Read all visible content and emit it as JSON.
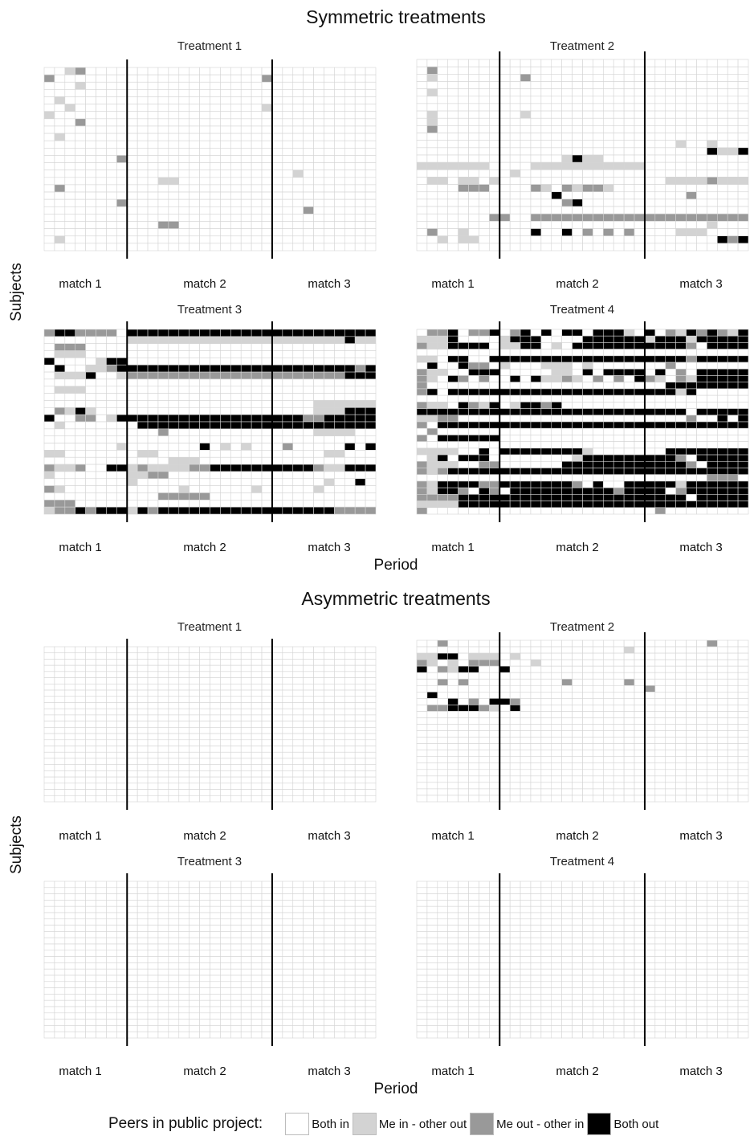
{
  "chart_data": {
    "type": "heatmap",
    "colors": {
      "both_in": "#ffffff",
      "me_in_other_out": "#d3d3d3",
      "me_out_other_in": "#999999",
      "both_out": "#000000",
      "grid": "#d4d4d4"
    },
    "legend": {
      "title": "Peers in public project:",
      "entries": [
        {
          "label": "Both in",
          "color": "#ffffff"
        },
        {
          "label": "Me in - other out",
          "color": "#d3d3d3"
        },
        {
          "label": "Me out - other in",
          "color": "#999999"
        },
        {
          "label": "Both out",
          "color": "#000000"
        }
      ],
      "placement": "bottom"
    },
    "xlabel": "Period",
    "ylabel": "Subjects",
    "match_labels": [
      "match 1",
      "match 2",
      "match 3"
    ],
    "state_codes": {
      "0": "Both in",
      "1": "Me in - other out",
      "2": "Me out - other in",
      "3": "Both out"
    },
    "periods_per_match": [
      8,
      14,
      10
    ],
    "sections": [
      {
        "title": "Symmetric treatments",
        "panels": [
          {
            "title": "Treatment 1",
            "rows": [
              "00120000000000000000000000000000",
              "20000000000000000000020000000000",
              "00010000000000000000000000000000",
              "00000000000000000000000000000000",
              "01000000000000000000000000000000",
              "00100000000000000000010000000000",
              "10000000000000000000000000000000",
              "00020000000000000000000000000000",
              "00000000000000000000000000000000",
              "01000000000000000000000000000000",
              "00000000000000000000000000000000",
              "00000000000000000000000000000000",
              "00000002000000000000000000000000",
              "00000000000000000000000000000000",
              "00000000000000000000000010000000",
              "00000000000110000000000000000000",
              "02000000000000000000000000000000",
              "00000000000000000000000000000000",
              "00000002000000000000000000000000",
              "00000000000000000000000002000000",
              "00000000000000000000000000000000",
              "00000000000220000000000000000000",
              "00000000000000000000000000000000",
              "01000000000000000000000000000000",
              "00000000000000000000000000000000"
            ]
          },
          {
            "title": "Treatment 2",
            "rows": [
              "00000000000000000000000000000000",
              "02000000000000000000000000000000",
              "01000000002000000000000000000000",
              "00000000000000000000000000000000",
              "01000000000000000000000000000000",
              "00000000000000000000000000000000",
              "00000000000000000000000000000000",
              "01000000001000000000000000000000",
              "01000000000000000000000000000000",
              "02000000000000000000000000000000",
              "00000000000000000000000000000000",
              "00000000000000000000000001001000",
              "00000000000000000000000000003113",
              "00000000000000131100000000000000",
              "11111110000111111111110000000000",
              "00000000010000000000000000000000",
              "01101101000000000000000011112111",
              "00002220000210212210000000000000",
              "00000000000003000000000000200000",
              "00000000000000230000000000000000",
              "00000000000000000000000000000000",
              "00000002200222222222222222222222",
              "00000000000000000000000000001000",
              "02001000000300302020200001110000",
              "00101100000000000000000000000323",
              "00000000000000000000000000000000"
            ]
          },
          {
            "title": "Treatment 3",
            "rows": [
              "23322220333333333333333333333333",
              "00000000111111111111111111111311",
              "02220000000000000000000000000000",
              "01110000000000000000000000000000",
              "30000133000000000000000000000000",
              "03001123333333333333333333333323",
              "01113001222222222222222222222333",
              "00000000000000000000000000000000",
              "01110000000000000000000000000000",
              "00000000000000000000000000000000",
              "00000000000000000000000000111111",
              "02131000000000000000000000111333",
              "30022013333333333333333332233333",
              "01000000033333333333333333333333",
              "00000000000200000000000000111100",
              "00000000000000000000000000000000",
              "00000001000000030101000200000303",
              "11000000011000000000000000011000",
              "00000000000011100000000000000000",
              "21120033121111223333333333211333",
              "10000000112200000000000000000000",
              "00000000100000000000000000010030",
              "21000000000001000000100000100000",
              "00000000000222220000000000000000",
              "22200000000000000000000000000000",
              "12232333132333333333333333332222"
            ]
          },
          {
            "title": "Treatment 4",
            "rows": [
              "02230223023030330333103021323213",
              "11130000133300003333331333133333",
              "21133330113301033333333333203333",
              "00000000000000000000000000000000",
              "11033003333333333333333333233333",
              "03003220100011101000000020000000",
              "21100333000001103033330302033333",
              "21032020030311210202032102133333",
              "20000000000000000000000033333333",
              "23033333333333333333333331300000",
              "00000000000000000000000000000000",
              "21103213013323000000000000000000",
              "33333333333333333333333333033333",
              "11220000000000000000000000200303",
              "20333333333333333333333333333333",
              "02000000000000000000000000000000",
              "20333333000000000000000000000000",
              "00000000000000000000000000000000",
              "11110030333333331000000033333333",
              "01303330000000013333333332033333",
              "21110022000000333333333333203333",
              "21233333333333333333333333333333",
              "00000000000000000000000000002220",
              "21333322333333320300333331333333",
              "21332032033333333332333302333333",
              "22223333333333333333333333033333",
              "11113333333333333333333333333333",
              "20000000000000000000000200000000"
            ]
          }
        ]
      },
      {
        "title": "Asymmetric treatments",
        "panels": [
          {
            "title": "Treatment 1",
            "rows": [
              "00000000000000000000000000000000",
              "00000000000000000000000000000000",
              "00000000000000000000000000000000",
              "00000000000000000000000000000000",
              "00000000000000000000000000000000",
              "00000000000000000000000000000000",
              "00000000000000000000000000000000",
              "00000000000000000000000000000000",
              "00000000000000000000000000000000",
              "00000000000000000000000000000000",
              "00000000000000000000000000000000",
              "00000000000000000000000000000000",
              "00000000000000000000000000000000",
              "00000000000000000000000000000000",
              "00000000000000000000000000000000",
              "00000000000000000000000000000000",
              "00000000000000000000000000000000",
              "00000000000000000000000000000000",
              "00000000000000000000000000000000",
              "00000000000000000000000000000000",
              "00000000000000000000000000000000",
              "00000000000000000000000000000000",
              "00000000000000000000000000000000",
              "00000000000000000000000000000000",
              "00000000000000000000000000000000"
            ]
          },
          {
            "title": "Treatment 2",
            "rows": [
              "00200000000000000000000000002000",
              "00000000000000000000100000000000",
              "11330111010000000000000000000000",
              "21010222000100000000000000000000",
              "30213300300000000000000000000000",
              "00000000000000000000000000000000",
              "00202000000000200000200000000000",
              "00000000000000000000002000000000",
              "03000000000000000000000000000000",
              "00030203320000000000000000000000",
              "02233321030000000000000000000000",
              "00000000000000000000000000000000",
              "00000000000000000000000000000000",
              "00000000000000000000000000000000",
              "00000000000000000000000000000000",
              "00000000000000000000000000000000",
              "00000000000000000000000000000000",
              "00000000000000000000000000000000",
              "00000000000000000000000000000000",
              "00000000000000000000000000000000",
              "00000000000000000000000000000000",
              "00000000000000000000000000000000",
              "00000000000000000000000000000000",
              "00000000000000000000000000000000",
              "00000000000000000000000000000000"
            ]
          },
          {
            "title": "Treatment 3",
            "rows": [
              "00000000000000000000000000000000",
              "00000000000000000000000000000000",
              "00000000000000000000000000000000",
              "00000000000000000000000000000000",
              "00000000000000000000000000000000",
              "00000000000000000000000000000000",
              "00000000000000000000000000000000",
              "00000000000000000000000000000000",
              "00000000000000000000000000000000",
              "00000000000000000000000000000000",
              "00000000000000000000000000000000",
              "00000000000000000000000000000000",
              "00000000000000000000000000000000",
              "00000000000000000000000000000000",
              "00000000000000000000000000000000",
              "00000000000000000000000000000000",
              "00000000000000000000000000000000",
              "00000000000000000000000000000000",
              "00000000000000000000000000000000",
              "00000000000000000000000000000000",
              "00000000000000000000000000000000",
              "00000000000000000000000000000000",
              "00000000000000000000000000000000",
              "00000000000000000000000000000000",
              "00000000000000000000000000000000"
            ]
          },
          {
            "title": "Treatment 4",
            "rows": [
              "00000000000000000000000000000000",
              "00000000000000000000000000000000",
              "00000000000000000000000000000000",
              "00000000000000000000000000000000",
              "00000000000000000000000000000000",
              "00000000000000000000000000000000",
              "00000000000000000000000000000000",
              "00000000000000000000000000000000",
              "00000000000000000000000000000000",
              "00000000000000000000000000000000",
              "00000000000000000000000000000000",
              "00000000000000000000000000000000",
              "00000000000000000000000000000000",
              "00000000000000000000000000000000",
              "00000000000000000000000000000000",
              "00000000000000000000000000000000",
              "00000000000000000000000000000000",
              "00000000000000000000000000000000",
              "00000000000000000000000000000000",
              "00000000000000000000000000000000",
              "00000000000000000000000000000000",
              "00000000000000000000000000000000",
              "00000000000000000000000000000000",
              "00000000000000000000000000000000",
              "00000000000000000000000000000000"
            ]
          }
        ]
      }
    ]
  }
}
